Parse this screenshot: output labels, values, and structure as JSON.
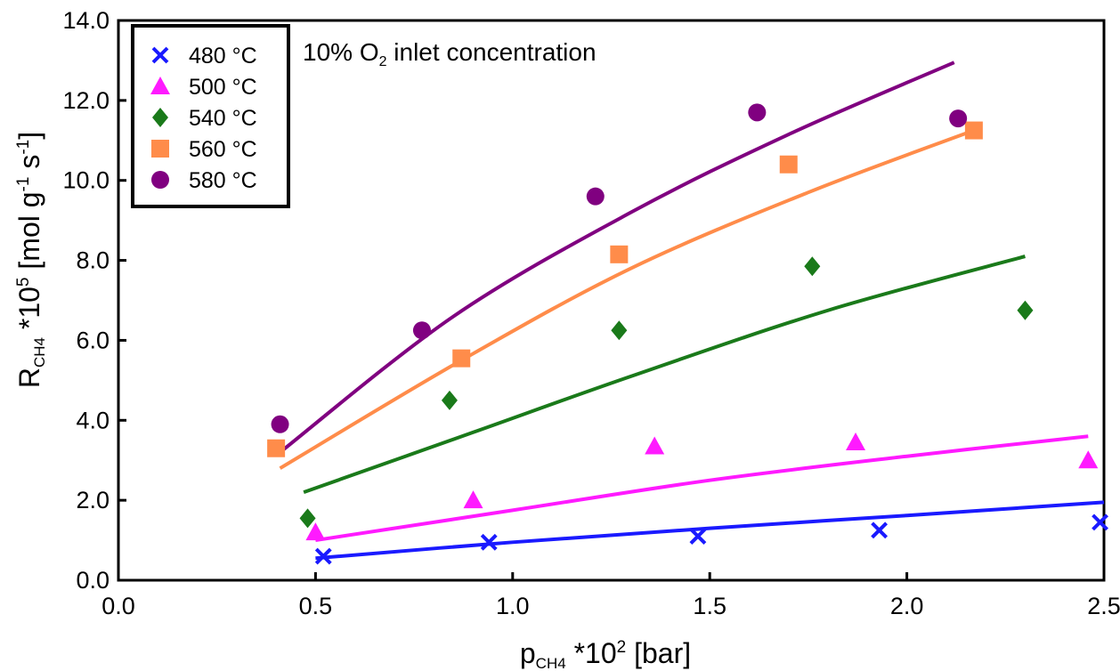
{
  "chart_data": {
    "type": "scatter",
    "annotation": {
      "text": "10% O",
      "sub": "2",
      "rest": " inlet concentration"
    },
    "xlabel": {
      "main": "p",
      "sub": "CH4",
      "rest": " *10",
      "sup": "2",
      "tail": " [bar]"
    },
    "ylabel": {
      "main": "R",
      "sub": "CH4",
      "rest": " *10",
      "sup": "5",
      "tail": " [mol g",
      "sup2": "-1",
      "mid": " s",
      "sup3": "-1",
      "end": "]"
    },
    "xlim": [
      0.0,
      2.5
    ],
    "ylim": [
      0.0,
      14.0
    ],
    "xticks": [
      0.0,
      0.5,
      1.0,
      1.5,
      2.0,
      2.5
    ],
    "xtick_labels": [
      "0.0",
      "0.5",
      "1.0",
      "1.5",
      "2.0",
      "2.5"
    ],
    "yticks": [
      0,
      2,
      4,
      6,
      8,
      10,
      12,
      14
    ],
    "ytick_labels": [
      "0.0",
      "2.0",
      "4.0",
      "6.0",
      "8.0",
      "10.0",
      "12.0",
      "14.0"
    ],
    "grid": false,
    "legend_position": "top-left",
    "series": [
      {
        "name": "480 °C",
        "color": "#1a1aff",
        "marker": "x",
        "points": [
          [
            0.52,
            0.6
          ],
          [
            0.94,
            0.95
          ],
          [
            1.47,
            1.1
          ],
          [
            1.93,
            1.25
          ],
          [
            2.49,
            1.45
          ]
        ],
        "fit": [
          [
            0.5,
            0.55
          ],
          [
            1.0,
            0.95
          ],
          [
            1.5,
            1.3
          ],
          [
            2.0,
            1.62
          ],
          [
            2.5,
            1.95
          ]
        ]
      },
      {
        "name": "500 °C",
        "color": "#ff1aff",
        "marker": "triangle",
        "points": [
          [
            0.5,
            1.2
          ],
          [
            0.9,
            2.0
          ],
          [
            1.36,
            3.35
          ],
          [
            1.87,
            3.45
          ],
          [
            2.46,
            3.0
          ]
        ],
        "fit": [
          [
            0.5,
            1.0
          ],
          [
            1.0,
            1.75
          ],
          [
            1.5,
            2.5
          ],
          [
            2.0,
            3.1
          ],
          [
            2.46,
            3.6
          ]
        ]
      },
      {
        "name": "540 °C",
        "color": "#1a7a1a",
        "marker": "diamond",
        "points": [
          [
            0.48,
            1.55
          ],
          [
            0.84,
            4.5
          ],
          [
            1.27,
            6.25
          ],
          [
            1.76,
            7.85
          ],
          [
            2.3,
            6.75
          ]
        ],
        "fit": [
          [
            0.47,
            2.2
          ],
          [
            0.9,
            3.7
          ],
          [
            1.3,
            5.1
          ],
          [
            1.8,
            6.75
          ],
          [
            2.3,
            8.1
          ]
        ]
      },
      {
        "name": "560 °C",
        "color": "#ff8c4a",
        "marker": "square",
        "points": [
          [
            0.4,
            3.3
          ],
          [
            0.87,
            5.55
          ],
          [
            1.27,
            8.15
          ],
          [
            1.7,
            10.4
          ],
          [
            2.17,
            11.25
          ]
        ],
        "fit": [
          [
            0.41,
            2.8
          ],
          [
            0.87,
            5.5
          ],
          [
            1.3,
            7.8
          ],
          [
            1.75,
            9.7
          ],
          [
            2.17,
            11.25
          ]
        ]
      },
      {
        "name": "580 °C",
        "color": "#800080",
        "marker": "circle",
        "points": [
          [
            0.41,
            3.9
          ],
          [
            0.77,
            6.25
          ],
          [
            1.21,
            9.6
          ],
          [
            1.62,
            11.7
          ],
          [
            2.13,
            11.55
          ]
        ],
        "fit": [
          [
            0.41,
            3.2
          ],
          [
            0.85,
            6.6
          ],
          [
            1.3,
            9.2
          ],
          [
            1.7,
            11.15
          ],
          [
            2.12,
            12.95
          ]
        ]
      }
    ]
  }
}
